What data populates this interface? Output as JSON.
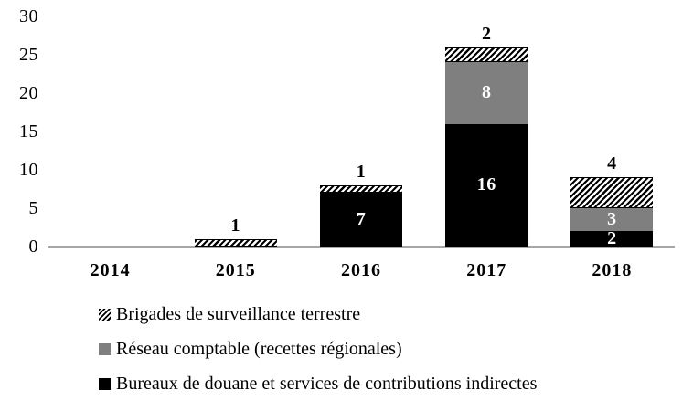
{
  "chart_data": {
    "type": "bar",
    "stacked": true,
    "title": "",
    "xlabel": "",
    "ylabel": "",
    "categories": [
      "2014",
      "2015",
      "2016",
      "2017",
      "2018"
    ],
    "series": [
      {
        "name": "Bureaux de douane et services de contributions indirectes",
        "swatch": "solid-black",
        "label_placement": "inside",
        "values": [
          0,
          0,
          7,
          16,
          2
        ]
      },
      {
        "name": "Réseau comptable (recettes régionales)",
        "swatch": "solid-gray",
        "label_placement": "inside",
        "values": [
          0,
          0,
          0,
          8,
          3
        ]
      },
      {
        "name": "Brigades de surveillance terrestre",
        "swatch": "hatched",
        "label_placement": "above",
        "values": [
          0,
          1,
          1,
          2,
          4
        ]
      }
    ],
    "totals_by_category": [
      0,
      1,
      8,
      26,
      9
    ],
    "ylim": [
      0,
      30
    ],
    "yticks": [
      0,
      5,
      10,
      15,
      20,
      25,
      30
    ],
    "grid": false,
    "legend_position": "bottom-left",
    "colors": {
      "solid_black": "#000000",
      "solid_gray": "#7f7f7f",
      "hatch_foreground": "#000000",
      "hatch_background": "#ffffff",
      "axis_line": "#a6a6a6",
      "inside_label_text": "#ffffff",
      "text": "#000000"
    }
  },
  "legend": {
    "items": [
      {
        "label": "Brigades de surveillance terrestre",
        "swatch": "hatched"
      },
      {
        "label": "Réseau comptable (recettes régionales)",
        "swatch": "solid-gray"
      },
      {
        "label": "Bureaux de douane et services de contributions indirectes",
        "swatch": "solid-black"
      }
    ]
  }
}
